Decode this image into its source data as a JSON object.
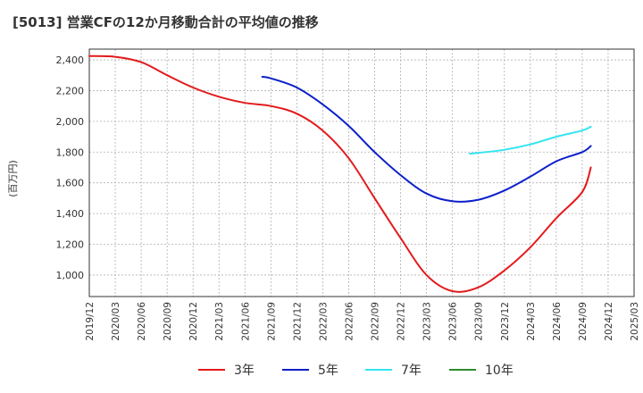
{
  "chart_data": {
    "type": "line",
    "title": "[5013]  営業CFの12か月移動合計の平均値の推移",
    "ylabel": "(百万円)",
    "xlabel": "",
    "ylim": [
      860,
      2470
    ],
    "yticks": [
      1000,
      1200,
      1400,
      1600,
      1800,
      2000,
      2200,
      2400
    ],
    "ytick_labels": [
      "1,000",
      "1,200",
      "1,400",
      "1,600",
      "1,800",
      "2,000",
      "2,200",
      "2,400"
    ],
    "xlim": [
      "2019-12",
      "2025-03"
    ],
    "xticks": [
      "2019/12",
      "2020/03",
      "2020/06",
      "2020/09",
      "2020/12",
      "2021/03",
      "2021/06",
      "2021/09",
      "2021/12",
      "2022/03",
      "2022/06",
      "2022/09",
      "2022/12",
      "2023/03",
      "2023/06",
      "2023/09",
      "2023/12",
      "2024/03",
      "2024/06",
      "2024/09",
      "2024/12",
      "2025/03"
    ],
    "grid": true,
    "legend_position": "bottom",
    "series": [
      {
        "name": "3年",
        "color": "#e31a1c",
        "points": [
          [
            "2019-12",
            2425
          ],
          [
            "2020-03",
            2420
          ],
          [
            "2020-06",
            2385
          ],
          [
            "2020-09",
            2300
          ],
          [
            "2020-12",
            2220
          ],
          [
            "2021-03",
            2160
          ],
          [
            "2021-06",
            2120
          ],
          [
            "2021-09",
            2100
          ],
          [
            "2021-12",
            2050
          ],
          [
            "2022-03",
            1940
          ],
          [
            "2022-06",
            1760
          ],
          [
            "2022-09",
            1500
          ],
          [
            "2022-12",
            1240
          ],
          [
            "2023-03",
            1000
          ],
          [
            "2023-06",
            895
          ],
          [
            "2023-09",
            920
          ],
          [
            "2023-12",
            1030
          ],
          [
            "2024-03",
            1180
          ],
          [
            "2024-06",
            1370
          ],
          [
            "2024-09",
            1540
          ],
          [
            "2024-10",
            1700
          ]
        ]
      },
      {
        "name": "5年",
        "color": "#0b1fc9",
        "points": [
          [
            "2021-08",
            2290
          ],
          [
            "2021-09",
            2280
          ],
          [
            "2021-12",
            2220
          ],
          [
            "2022-03",
            2110
          ],
          [
            "2022-06",
            1970
          ],
          [
            "2022-09",
            1800
          ],
          [
            "2022-12",
            1650
          ],
          [
            "2023-03",
            1530
          ],
          [
            "2023-06",
            1480
          ],
          [
            "2023-09",
            1490
          ],
          [
            "2023-12",
            1550
          ],
          [
            "2024-03",
            1640
          ],
          [
            "2024-06",
            1740
          ],
          [
            "2024-09",
            1800
          ],
          [
            "2024-10",
            1840
          ]
        ]
      },
      {
        "name": "7年",
        "color": "#33e5f0",
        "points": [
          [
            "2023-08",
            1790
          ],
          [
            "2023-09",
            1795
          ],
          [
            "2023-12",
            1815
          ],
          [
            "2024-03",
            1850
          ],
          [
            "2024-06",
            1900
          ],
          [
            "2024-09",
            1940
          ],
          [
            "2024-10",
            1965
          ]
        ]
      },
      {
        "name": "10年",
        "color": "#2e8b2e",
        "points": []
      }
    ]
  }
}
